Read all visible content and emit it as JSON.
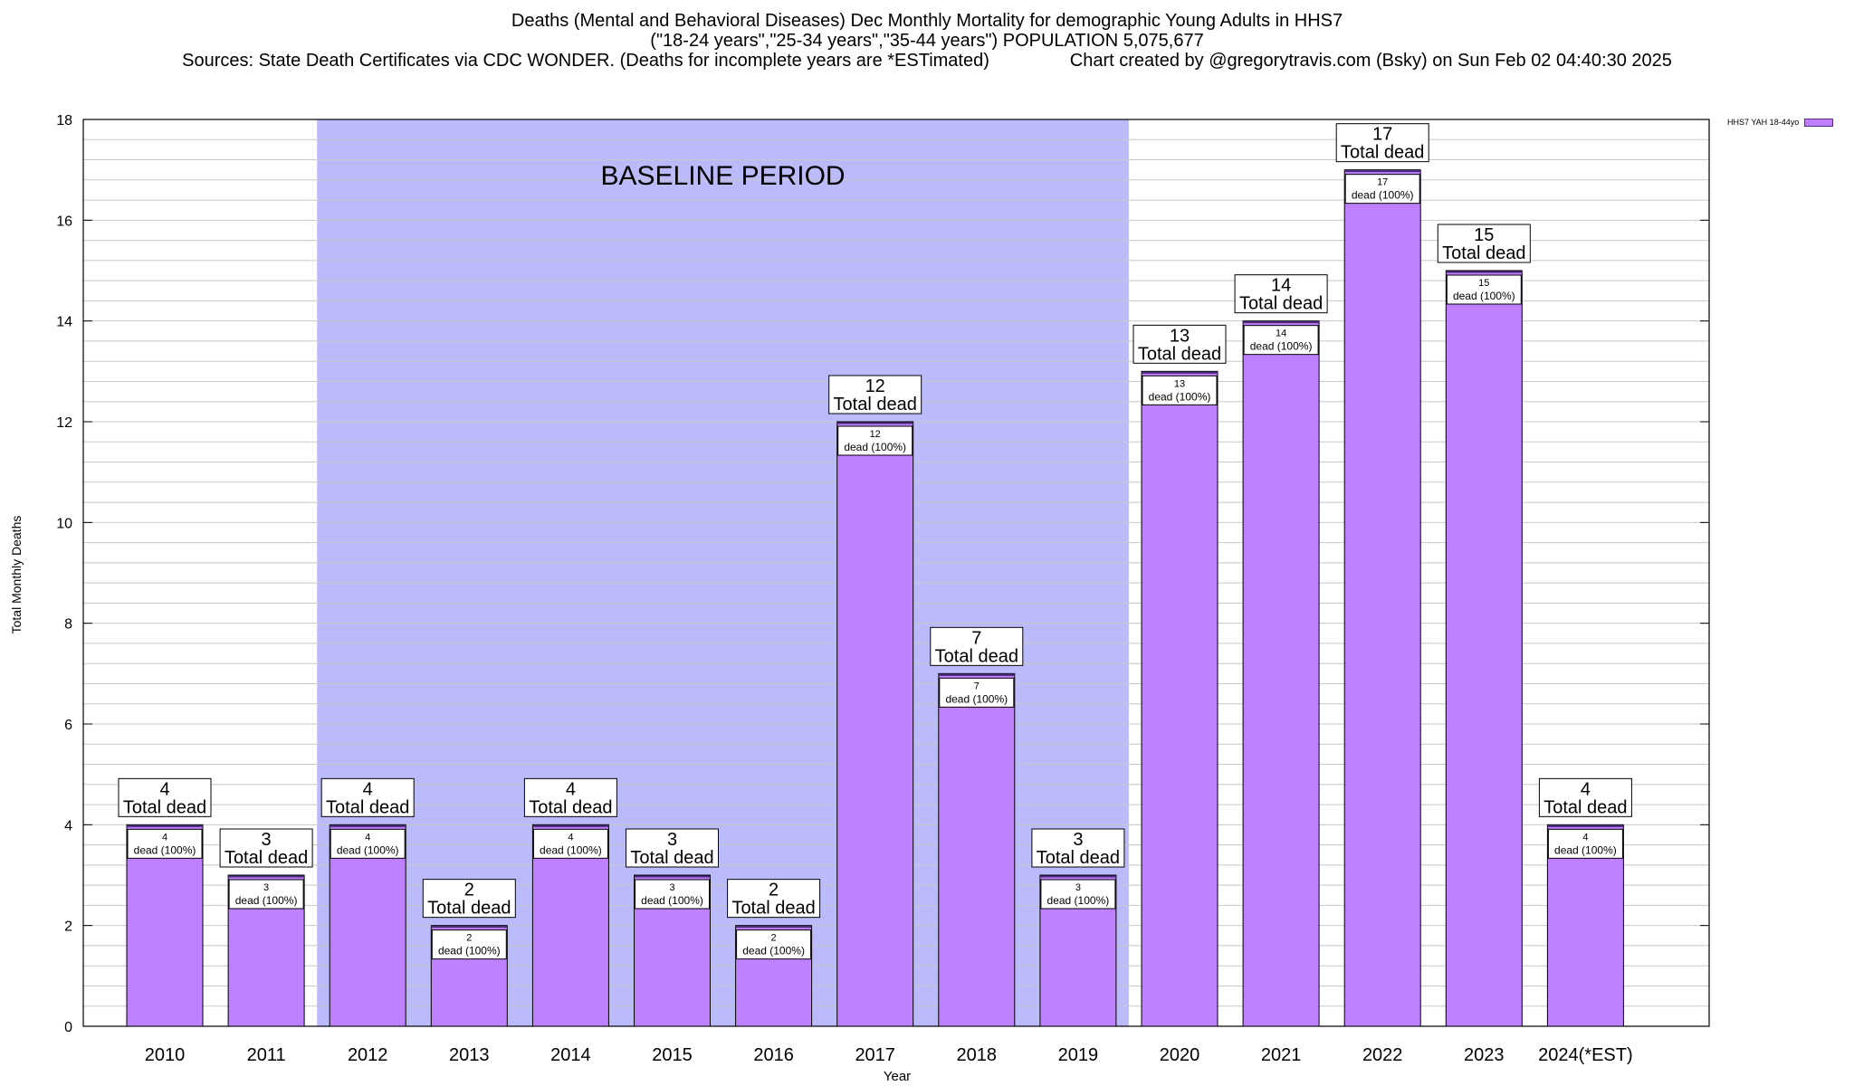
{
  "header": {
    "line1": "Deaths (Mental and Behavioral Diseases) Dec Monthly Mortality for demographic Young Adults in HHS7",
    "line2": "(\"18-24 years\",\"25-34 years\",\"35-44 years\") POPULATION 5,075,677",
    "line3": "Sources: State Death Certificates via CDC WONDER. (Deaths for incomplete years are *ESTimated)                Chart created by @gregorytravis.com (Bsky) on Sun Feb 02 04:40:30 2025"
  },
  "chart_data": {
    "type": "bar",
    "categories": [
      "2010",
      "2011",
      "2012",
      "2013",
      "2014",
      "2015",
      "2016",
      "2017",
      "2018",
      "2019",
      "2020",
      "2021",
      "2022",
      "2023",
      "2024(*EST)"
    ],
    "series": [
      {
        "name": "HHS7 YAH 18-44yo",
        "values": [
          4,
          3,
          4,
          2,
          4,
          3,
          2,
          12,
          7,
          3,
          13,
          14,
          17,
          15,
          4
        ]
      }
    ],
    "xlabel": "Year",
    "ylabel": "Total Monthly Deaths",
    "ylim": [
      0,
      18
    ],
    "yticks": [
      0,
      2,
      4,
      6,
      8,
      10,
      12,
      14,
      16,
      18
    ],
    "grid": true,
    "legend_position": "top-right",
    "bar_color": "#bf80ff",
    "shade_color": "#bbbbfb",
    "baseline_period": {
      "label": "BASELINE PERIOD",
      "from": "2012",
      "to": "2019"
    },
    "total_label_text": "Total dead",
    "bar_label_text": "dead (100%)"
  }
}
